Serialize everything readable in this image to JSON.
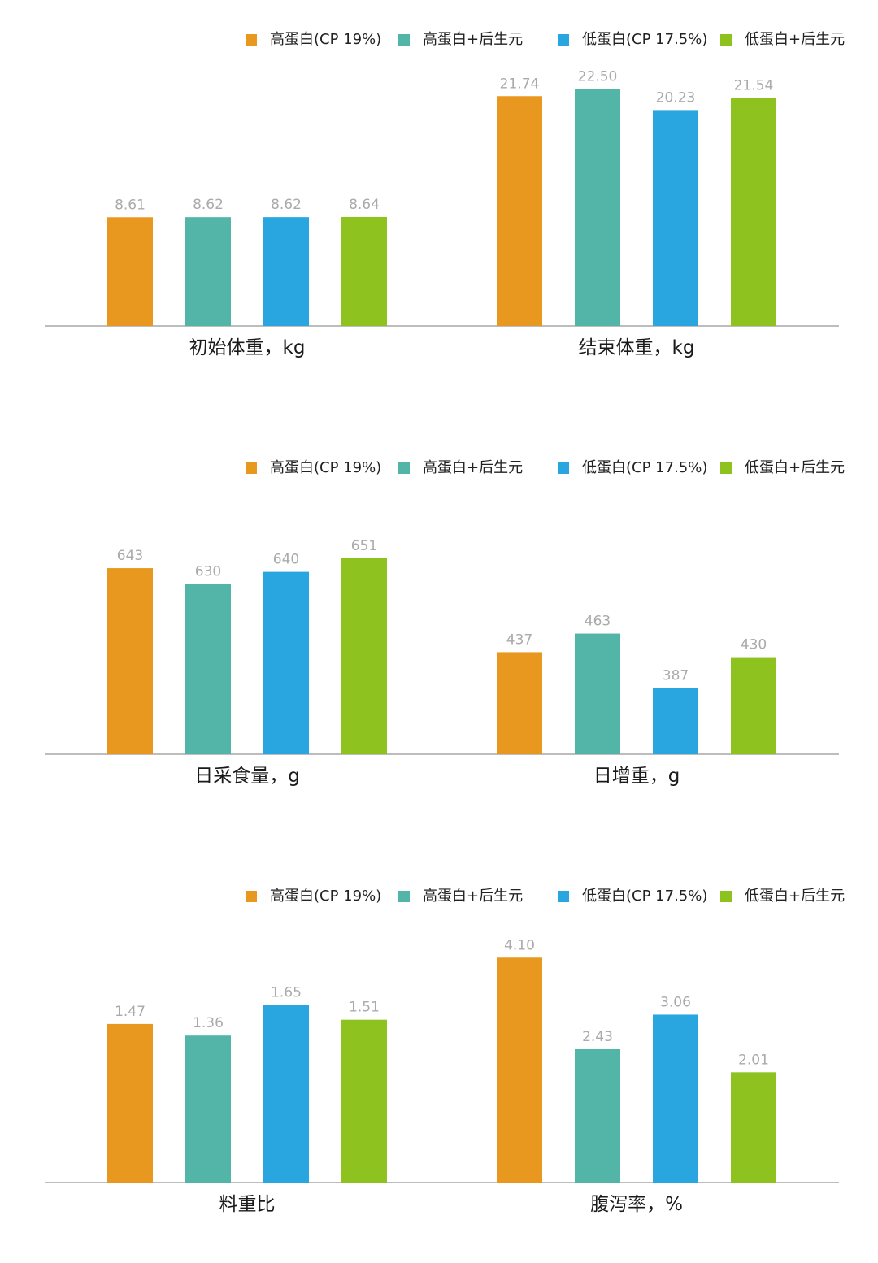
{
  "legend": [
    {
      "label": "高蛋白(CP 19%)",
      "color": "#E8971F"
    },
    {
      "label": "高蛋白+后生元",
      "color": "#52B5A7"
    },
    {
      "label": "低蛋白(CP 17.5%)",
      "color": "#29A6E0"
    },
    {
      "label": "低蛋白+后生元",
      "color": "#8DC21F"
    }
  ],
  "chart_data": [
    {
      "type": "bar",
      "series_names": [
        "高蛋白(CP 19%)",
        "高蛋白+后生元",
        "低蛋白(CP 17.5%)",
        "低蛋白+后生元"
      ],
      "groups": [
        {
          "label": "初始体重，kg",
          "values": [
            8.61,
            8.62,
            8.62,
            8.64
          ],
          "labels": [
            "8.61",
            "8.62",
            "8.62",
            "8.64"
          ]
        },
        {
          "label": "结束体重，kg",
          "values": [
            21.74,
            22.5,
            20.23,
            21.54
          ],
          "labels": [
            "21.74",
            "22.50",
            "20.23",
            "21.54"
          ]
        }
      ]
    },
    {
      "type": "bar",
      "series_names": [
        "高蛋白(CP 19%)",
        "高蛋白+后生元",
        "低蛋白(CP 17.5%)",
        "低蛋白+后生元"
      ],
      "groups": [
        {
          "label": "日采食量，g",
          "values": [
            643,
            630,
            640,
            651
          ],
          "labels": [
            "643",
            "630",
            "640",
            "651"
          ]
        },
        {
          "label": "日增重，g",
          "values": [
            437,
            463,
            387,
            430
          ],
          "labels": [
            "437",
            "463",
            "387",
            "430"
          ]
        }
      ]
    },
    {
      "type": "bar",
      "series_names": [
        "高蛋白(CP 19%)",
        "高蛋白+后生元",
        "低蛋白(CP 17.5%)",
        "低蛋白+后生元"
      ],
      "groups": [
        {
          "label": "料重比",
          "values": [
            1.47,
            1.36,
            1.65,
            1.51
          ],
          "labels": [
            "1.47",
            "1.36",
            "1.65",
            "1.51"
          ]
        },
        {
          "label": "腹泻率，%",
          "values": [
            4.1,
            2.43,
            3.06,
            2.01
          ],
          "labels": [
            "4.10",
            "2.43",
            "3.06",
            "2.01"
          ]
        }
      ]
    }
  ]
}
